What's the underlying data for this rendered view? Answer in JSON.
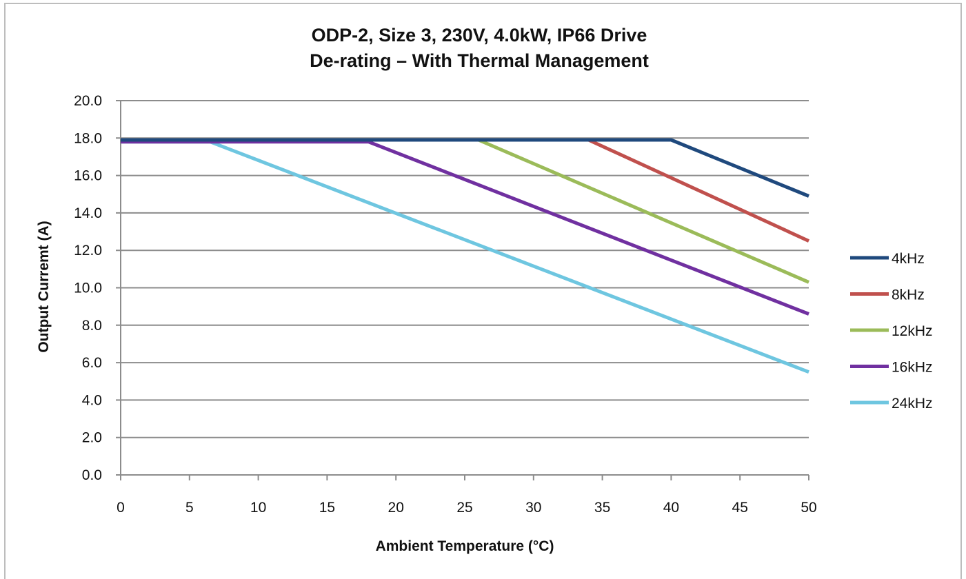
{
  "chart_data": {
    "type": "line",
    "title": "ODP-2, Size 3, 230V, 4.0kW, IP66 Drive",
    "subtitle": "De-rating – With Thermal Management",
    "xlabel": "Ambient Temperature (°C)",
    "ylabel": "Output Curremt (A)",
    "xlim": [
      0,
      50
    ],
    "ylim": [
      0,
      20
    ],
    "xticks": [
      0,
      5,
      10,
      15,
      20,
      25,
      30,
      35,
      40,
      45,
      50
    ],
    "yticks": [
      "0.0",
      "2.0",
      "4.0",
      "6.0",
      "8.0",
      "10.0",
      "12.0",
      "14.0",
      "16.0",
      "18.0",
      "20.0"
    ],
    "grid": "horizontal",
    "legend_position": "right",
    "series": [
      {
        "name": "4kHz",
        "color": "#1f497d",
        "x": [
          0,
          40,
          50
        ],
        "y": [
          17.9,
          17.9,
          14.9
        ]
      },
      {
        "name": "8kHz",
        "color": "#c0504d",
        "x": [
          0,
          34,
          50
        ],
        "y": [
          17.9,
          17.9,
          12.5
        ]
      },
      {
        "name": "12kHz",
        "color": "#9bbb59",
        "x": [
          0,
          26,
          50
        ],
        "y": [
          17.9,
          17.9,
          10.3
        ]
      },
      {
        "name": "16kHz",
        "color": "#7030a0",
        "x": [
          0,
          18,
          50
        ],
        "y": [
          17.8,
          17.8,
          8.6
        ]
      },
      {
        "name": "24kHz",
        "color": "#6ec6e0",
        "x": [
          0,
          6.5,
          50
        ],
        "y": [
          17.8,
          17.8,
          5.5
        ]
      }
    ]
  }
}
